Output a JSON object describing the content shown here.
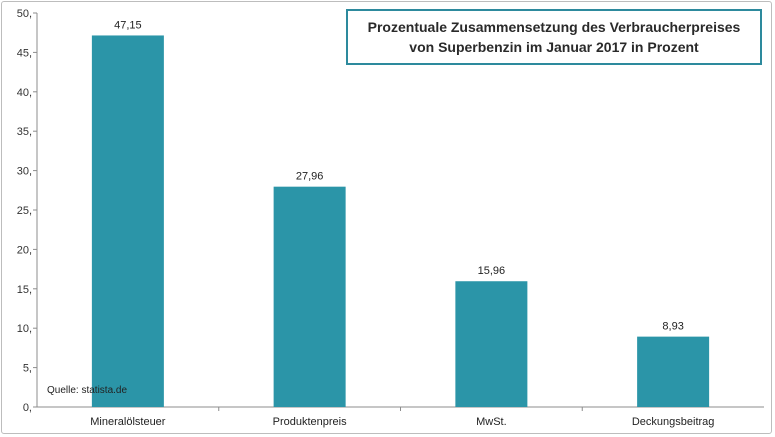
{
  "chart_data": {
    "type": "bar",
    "title": [
      "Prozentuale Zusammensetzung des Verbraucherpreises",
      "von Superbenzin im Januar 2017 in Prozent"
    ],
    "categories": [
      "Mineralölsteuer",
      "Produktenpreis",
      "MwSt.",
      "Deckungsbeitrag"
    ],
    "values": [
      47.15,
      27.96,
      15.96,
      8.93
    ],
    "value_labels": [
      "47,15",
      "27,96",
      "15,96",
      "8,93"
    ],
    "ylim": [
      0,
      50
    ],
    "yticks": [
      {
        "value": 0,
        "label": "0,"
      },
      {
        "value": 5,
        "label": "5,"
      },
      {
        "value": 10,
        "label": "10,"
      },
      {
        "value": 15,
        "label": "15,"
      },
      {
        "value": 20,
        "label": "20,"
      },
      {
        "value": 25,
        "label": "25,"
      },
      {
        "value": 30,
        "label": "30,"
      },
      {
        "value": 35,
        "label": "35,"
      },
      {
        "value": 40,
        "label": "40,"
      },
      {
        "value": 45,
        "label": "45,"
      },
      {
        "value": 50,
        "label": "50,"
      }
    ],
    "source": "Quelle: statista.de",
    "bar_color": "#2b95a8",
    "grid": false,
    "legend": "none"
  }
}
